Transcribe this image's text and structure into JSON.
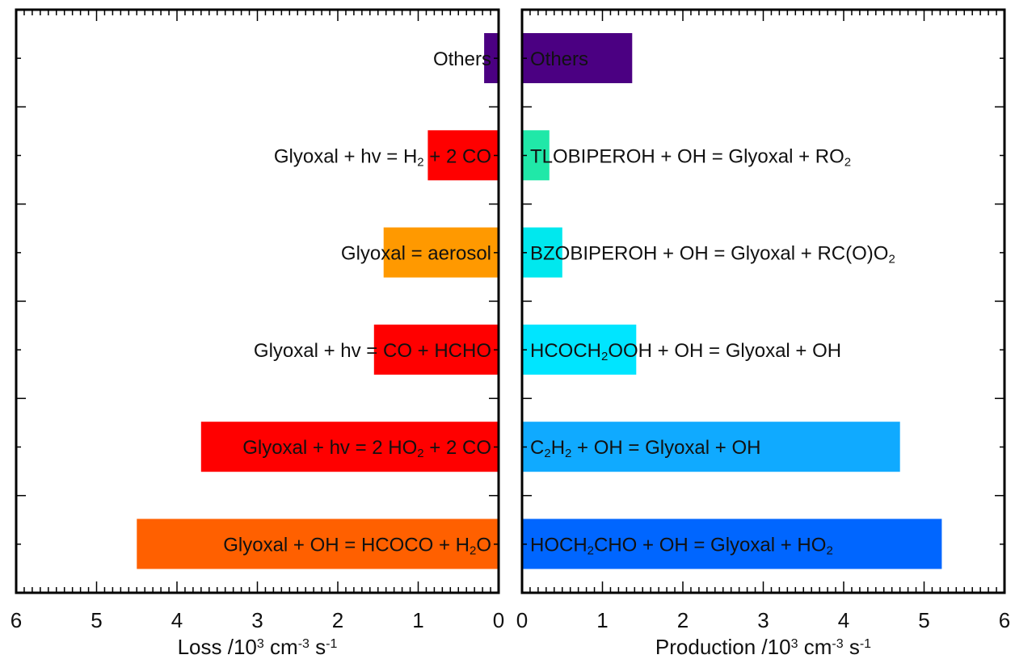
{
  "chart_data": [
    {
      "type": "bar",
      "orientation": "horizontal",
      "direction": "right-to-left",
      "xlim": [
        0,
        6
      ],
      "xticks": [
        "6",
        "5",
        "4",
        "3",
        "2",
        "1",
        "0"
      ],
      "xlabel": [
        {
          "t": "Loss /10"
        },
        {
          "t": "3",
          "sup": true
        },
        {
          "t": " cm"
        },
        {
          "t": "-3",
          "sup": true
        },
        {
          "t": " s"
        },
        {
          "t": "-1",
          "sup": true
        }
      ],
      "bars": [
        {
          "value": 0.18,
          "color": "#4b0082",
          "label": [
            {
              "t": "Others"
            }
          ]
        },
        {
          "value": 0.88,
          "color": "#ff0000",
          "label": [
            {
              "t": "Glyoxal + hv = H"
            },
            {
              "t": "2",
              "sub": true
            },
            {
              "t": " + 2 CO"
            }
          ]
        },
        {
          "value": 1.43,
          "color": "#ff9900",
          "label": [
            {
              "t": "Glyoxal = aerosol"
            }
          ]
        },
        {
          "value": 1.55,
          "color": "#ff0000",
          "label": [
            {
              "t": "Glyoxal + hv = CO + HCHO"
            }
          ]
        },
        {
          "value": 3.7,
          "color": "#ff0000",
          "label": [
            {
              "t": "Glyoxal + hv = 2 HO"
            },
            {
              "t": "2",
              "sub": true
            },
            {
              "t": " + 2 CO"
            }
          ]
        },
        {
          "value": 4.5,
          "color": "#ff6000",
          "label": [
            {
              "t": "Glyoxal + OH = HCOCO + H"
            },
            {
              "t": "2",
              "sub": true
            },
            {
              "t": "O"
            }
          ]
        }
      ]
    },
    {
      "type": "bar",
      "orientation": "horizontal",
      "direction": "left-to-right",
      "xlim": [
        0,
        6
      ],
      "xticks": [
        "0",
        "1",
        "2",
        "3",
        "4",
        "5",
        "6"
      ],
      "xlabel": [
        {
          "t": "Production /10"
        },
        {
          "t": "3",
          "sup": true
        },
        {
          "t": " cm"
        },
        {
          "t": "-3",
          "sup": true
        },
        {
          "t": " s"
        },
        {
          "t": "-1",
          "sup": true
        }
      ],
      "bars": [
        {
          "value": 1.37,
          "color": "#4b0082",
          "label": [
            {
              "t": "Others"
            }
          ]
        },
        {
          "value": 0.34,
          "color": "#20e8a8",
          "label": [
            {
              "t": "TLOBIPEROH + OH = Glyoxal + RO"
            },
            {
              "t": "2",
              "sub": true
            }
          ]
        },
        {
          "value": 0.5,
          "color": "#00e8ee",
          "label": [
            {
              "t": "BZOBIPEROH + OH = Glyoxal + RC(O)O"
            },
            {
              "t": "2",
              "sub": true
            }
          ]
        },
        {
          "value": 1.42,
          "color": "#00e5ff",
          "label": [
            {
              "t": "HCOCH"
            },
            {
              "t": "2",
              "sub": true
            },
            {
              "t": "OOH + OH = Glyoxal + OH"
            }
          ]
        },
        {
          "value": 4.7,
          "color": "#10aaff",
          "label": [
            {
              "t": "C"
            },
            {
              "t": "2",
              "sub": true
            },
            {
              "t": "H"
            },
            {
              "t": "2",
              "sub": true
            },
            {
              "t": " + OH = Glyoxal + OH"
            }
          ]
        },
        {
          "value": 5.22,
          "color": "#0066ff",
          "label": [
            {
              "t": "HOCH"
            },
            {
              "t": "2",
              "sub": true
            },
            {
              "t": "CHO + OH = Glyoxal + HO"
            },
            {
              "t": "2",
              "sub": true
            }
          ]
        }
      ]
    }
  ]
}
